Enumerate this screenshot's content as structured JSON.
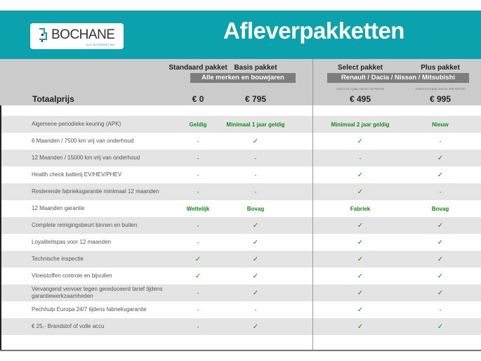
{
  "header": {
    "logo_text": "BOCHANE",
    "logo_tagline": "ALS JE VOORUIT WIL",
    "title": "Afleverpakketten",
    "brand_color": "#0ba2ad"
  },
  "packages": [
    {
      "name": "Standaard pakket",
      "price": "€ 0",
      "note": ""
    },
    {
      "name": "Basis pakket",
      "price": "€ 795",
      "note": ""
    },
    {
      "name": "Select pakket",
      "price": "€ 495",
      "note": "Auto's tot 1 jaar oud en 20.000 km"
    },
    {
      "name": "Plus pakket",
      "price": "€ 995",
      "note": "Auto's tot 5 jaar oud en 100.000 km"
    }
  ],
  "bands": [
    "Alle merken en bouwjaren",
    "Renault / Dacia / Nissan / Mitsubishi"
  ],
  "total_label": "Totaalprijs",
  "rows": [
    {
      "label": "Algemene periodieke keuring (APK)",
      "values": [
        "Geldig",
        "Minimaal 1 jaar geldig",
        "Minimaal 2 jaar geldig",
        "Nieuw"
      ]
    },
    {
      "label": "6 Maanden / 7500 km vrij van onderhoud",
      "values": [
        "-",
        "✓",
        "✓",
        "-"
      ]
    },
    {
      "label": "12 Maanden / 15000 km vrij van onderhoud",
      "values": [
        "-",
        "-",
        "-",
        "✓"
      ]
    },
    {
      "label": "Health check batterij EV/HEV/PHEV",
      "values": [
        "-",
        "-",
        "✓",
        "✓"
      ]
    },
    {
      "label": "Resterende fabrieksgarantie minimaal 12 maanden",
      "values": [
        "-",
        "-",
        "✓",
        "-"
      ]
    },
    {
      "label": "12 Maanden  garantie",
      "values": [
        "Wettelijk",
        "Bovag",
        "Fabriek",
        "Bovag"
      ]
    },
    {
      "label": "Complete reinigingsbeurt binnen en buiten",
      "values": [
        "-",
        "✓",
        "✓",
        "✓"
      ]
    },
    {
      "label": "Loyaliteitspas voor 12 maanden",
      "values": [
        "-",
        "✓",
        "✓",
        "✓"
      ]
    },
    {
      "label": "Technische inspectie",
      "values": [
        "✓",
        "✓",
        "✓",
        "✓"
      ]
    },
    {
      "label": "Vloeistoffen controle en bijvullen",
      "values": [
        "✓",
        "✓",
        "✓",
        "✓"
      ]
    },
    {
      "label": "Vervangend vervoer tegen gereduceerd tarief tijdens garantiewerkzaamheden",
      "values": [
        "-",
        "✓",
        "✓",
        "✓"
      ]
    },
    {
      "label": "Pechhulp Europa 24/7 tijdens fabrieksgarantie",
      "values": [
        "-",
        "-",
        "✓",
        "-"
      ]
    },
    {
      "label": "€ 25,- Brandstof of  volle accu",
      "values": [
        "-",
        "✓",
        "✓",
        "✓"
      ]
    }
  ]
}
